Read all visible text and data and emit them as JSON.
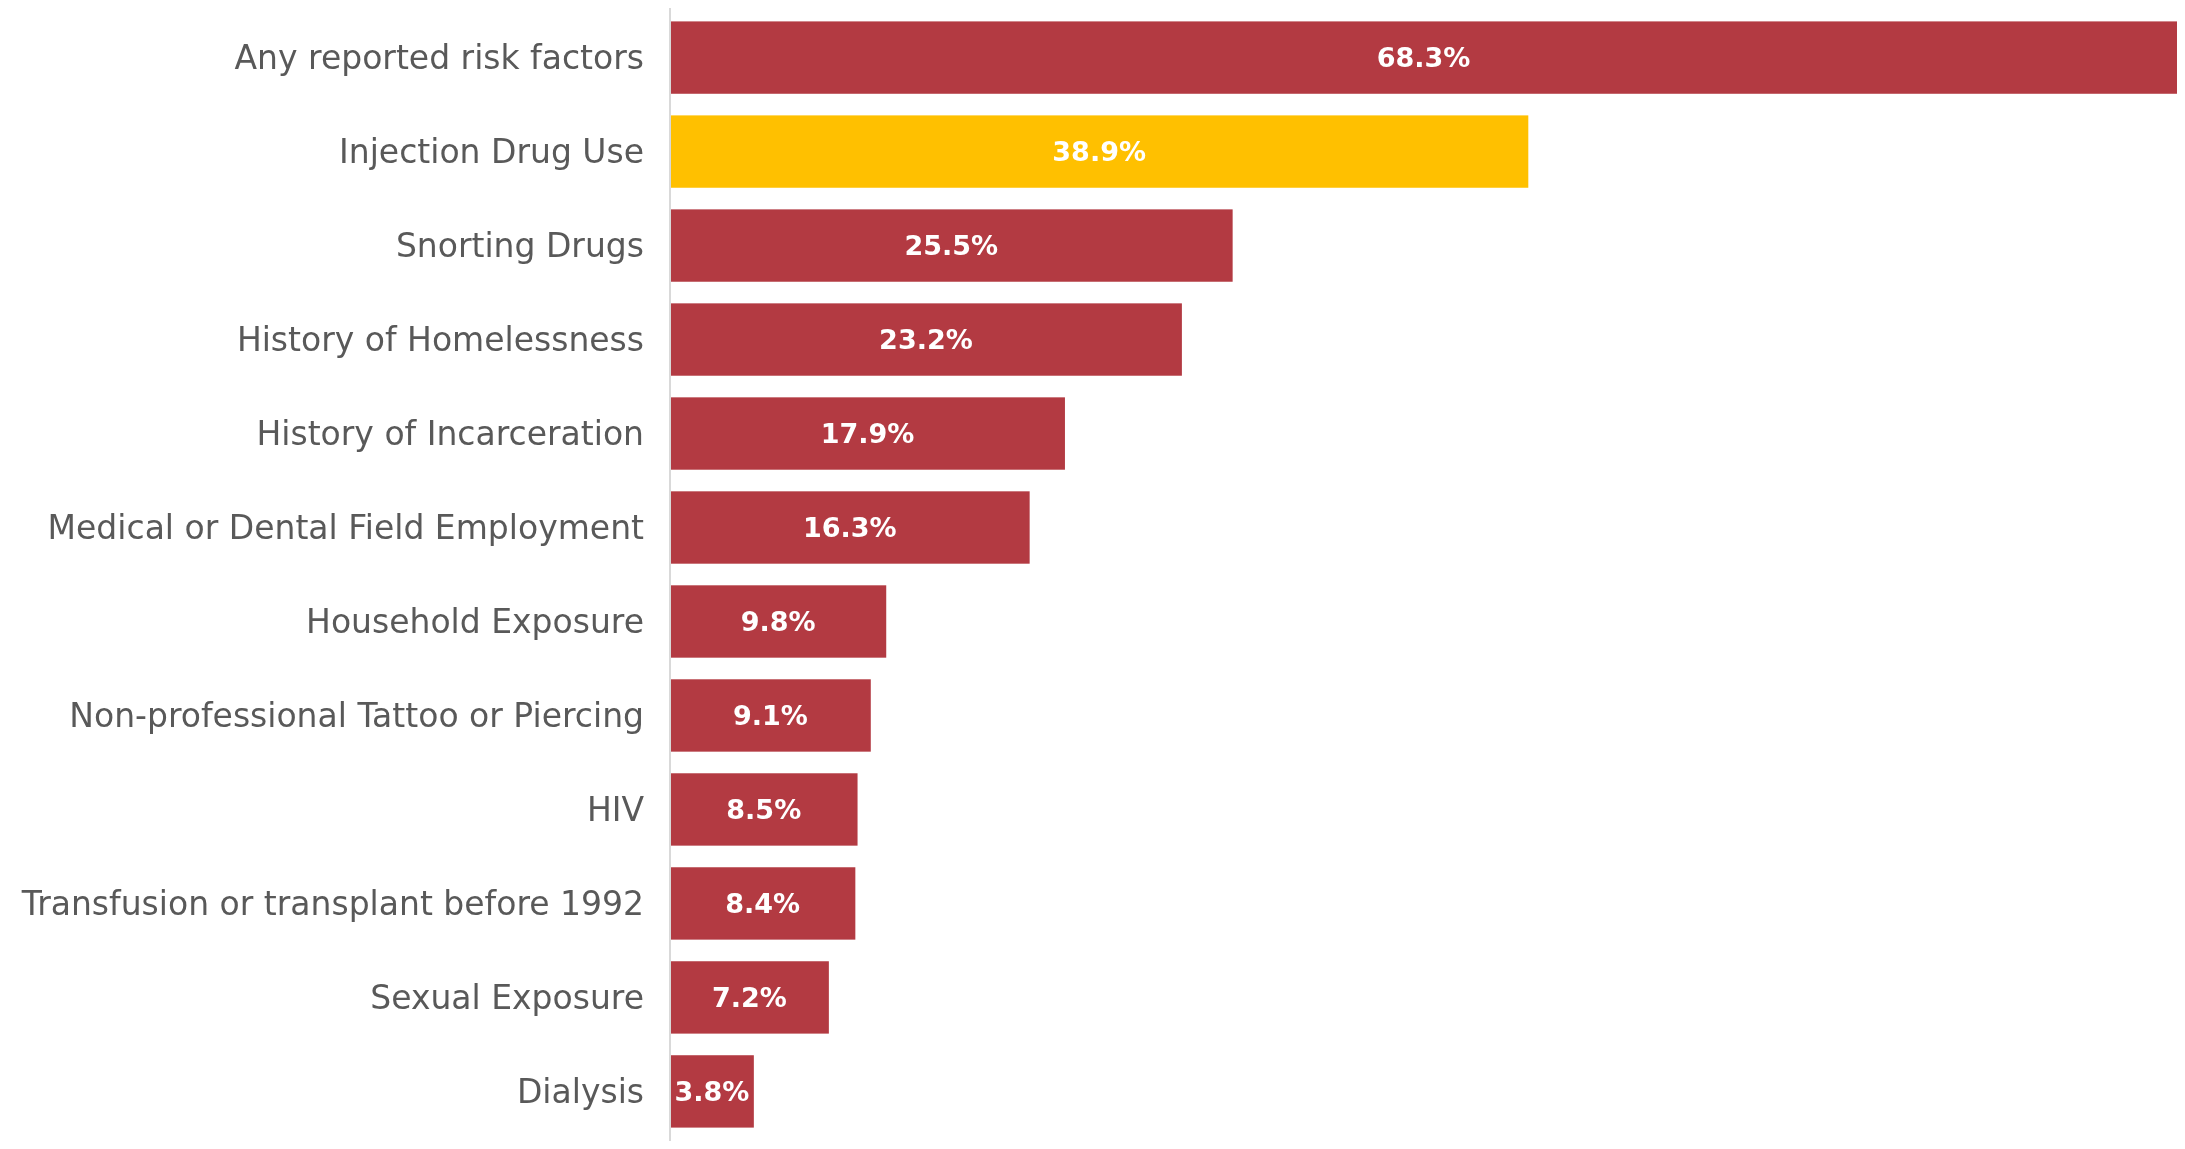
{
  "chart_data": {
    "type": "bar",
    "orientation": "horizontal",
    "categories": [
      "Any reported risk factors",
      "Injection Drug Use",
      "Snorting Drugs",
      "History of Homelessness",
      "History of Incarceration",
      "Medical or Dental Field Employment",
      "Household Exposure",
      "Non-professional Tattoo or Piercing",
      "HIV",
      "Transfusion or transplant before 1992",
      "Sexual Exposure",
      "Dialysis"
    ],
    "values": [
      68.3,
      38.9,
      25.5,
      23.2,
      17.9,
      16.3,
      9.8,
      9.1,
      8.5,
      8.4,
      7.2,
      3.8
    ],
    "colors": [
      "#b33a42",
      "#ffc000",
      "#b33a42",
      "#b33a42",
      "#b33a42",
      "#b33a42",
      "#b33a42",
      "#b33a42",
      "#b33a42",
      "#b33a42",
      "#b33a42",
      "#b33a42"
    ],
    "value_labels": [
      "68.3%",
      "38.9%",
      "25.5%",
      "23.2%",
      "17.9%",
      "16.3%",
      "9.8%",
      "9.1%",
      "8.5%",
      "8.4%",
      "7.2%",
      "3.8%"
    ]
  }
}
